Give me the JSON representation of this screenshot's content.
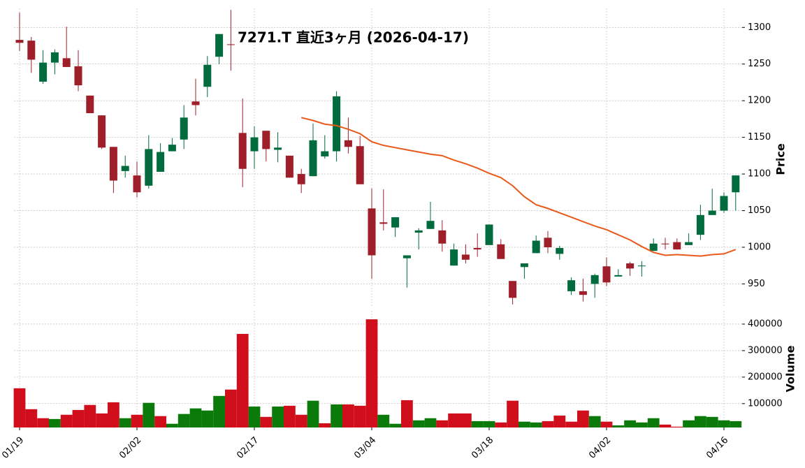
{
  "chart_data": [
    {
      "type": "candlestick",
      "title": "7271.T  直近3ヶ月  (2026-04-17)",
      "ylabel": "Price",
      "open": [
        1283,
        1282,
        1226,
        1252,
        1258,
        1247,
        1207,
        1180,
        1137,
        1104,
        1098,
        1084,
        1103,
        1131,
        1147,
        1199,
        1219,
        1260,
        1277,
        1156,
        1131,
        1159,
        1133,
        1125,
        1100,
        1097,
        1124,
        1131,
        1146,
        1138,
        1053,
        1034,
        1027,
        985,
        1020,
        1025,
        1023,
        975,
        990,
        999,
        1003,
        1004,
        954,
        973,
        992,
        1013,
        991,
        940,
        940,
        950,
        974,
        960,
        978,
        975,
        995,
        1005,
        1007,
        1003,
        1017,
        1044,
        1050,
        1075
      ],
      "high": [
        1320,
        1287,
        1269,
        1270,
        1301,
        1269,
        1207,
        1180,
        1137,
        1125,
        1117,
        1153,
        1142,
        1149,
        1194,
        1230,
        1261,
        1291,
        1324,
        1203,
        1165,
        1159,
        1157,
        1125,
        1107,
        1169,
        1153,
        1213,
        1177,
        1152,
        1080,
        1079,
        1041,
        989,
        1026,
        1062,
        1037,
        1005,
        1004,
        1019,
        1031,
        1011,
        954,
        978,
        1016,
        1022,
        1002,
        959,
        957,
        964,
        986,
        970,
        980,
        981,
        1012,
        1013,
        1012,
        1019,
        1058,
        1080,
        1075,
        1098
      ],
      "low": [
        1268,
        1238,
        1223,
        1236,
        1246,
        1213,
        1183,
        1134,
        1074,
        1095,
        1068,
        1080,
        1103,
        1131,
        1134,
        1180,
        1205,
        1250,
        1241,
        1082,
        1107,
        1117,
        1116,
        1095,
        1074,
        1097,
        1121,
        1117,
        1128,
        1086,
        957,
        1023,
        1014,
        945,
        997,
        1025,
        994,
        975,
        978,
        987,
        1003,
        984,
        922,
        957,
        992,
        992,
        983,
        935,
        926,
        931,
        947,
        960,
        961,
        960,
        995,
        997,
        997,
        1003,
        1010,
        1044,
        1047,
        1050
      ],
      "close": [
        1279,
        1256,
        1252,
        1266,
        1246,
        1221,
        1183,
        1136,
        1091,
        1111,
        1075,
        1134,
        1130,
        1140,
        1177,
        1194,
        1249,
        1291,
        1276,
        1107,
        1150,
        1134,
        1136,
        1095,
        1086,
        1146,
        1131,
        1206,
        1137,
        1086,
        989,
        1032,
        1041,
        989,
        1023,
        1036,
        1005,
        997,
        983,
        997,
        1031,
        984,
        931,
        978,
        1009,
        1000,
        999,
        955,
        935,
        962,
        952,
        962,
        971,
        975,
        1005,
        1004,
        997,
        1007,
        1044,
        1050,
        1070,
        1098
      ],
      "up_color": "#006b3c",
      "down_color": "#9e1f2a",
      "ma": {
        "color": "#e8591a",
        "values": [
          null,
          null,
          null,
          null,
          null,
          null,
          null,
          null,
          null,
          null,
          null,
          null,
          null,
          null,
          null,
          null,
          null,
          null,
          null,
          null,
          null,
          null,
          null,
          null,
          1177,
          1173,
          1168,
          1166,
          1161,
          1155,
          1144,
          1139,
          1136,
          1133,
          1130,
          1127,
          1125,
          1119,
          1114,
          1108,
          1101,
          1095,
          1084,
          1069,
          1058,
          1053,
          1047,
          1041,
          1035,
          1029,
          1024,
          1017,
          1010,
          1001,
          993,
          989,
          990,
          989,
          988,
          990,
          991,
          997
        ]
      },
      "ylim": [
        918,
        1326
      ],
      "yticks": [
        950,
        1000,
        1050,
        1100,
        1150,
        1200,
        1250,
        1300
      ],
      "grid": true
    },
    {
      "type": "bar",
      "ylabel": "Volume",
      "categories": [
        "01/19",
        null,
        null,
        null,
        null,
        null,
        null,
        null,
        null,
        null,
        "02/02",
        null,
        null,
        null,
        null,
        null,
        null,
        null,
        null,
        null,
        "02/17",
        null,
        null,
        null,
        null,
        null,
        null,
        null,
        null,
        null,
        "03/04",
        null,
        null,
        null,
        null,
        null,
        null,
        null,
        null,
        null,
        "03/18",
        null,
        null,
        null,
        null,
        null,
        null,
        null,
        null,
        null,
        "04/02",
        null,
        null,
        null,
        null,
        null,
        null,
        null,
        null,
        null,
        "04/16",
        null
      ],
      "values": [
        158000,
        79000,
        45000,
        42000,
        58000,
        76000,
        95000,
        63000,
        105000,
        45000,
        58000,
        103000,
        53000,
        24000,
        61000,
        82000,
        74000,
        129000,
        153000,
        363000,
        89000,
        50000,
        89000,
        92000,
        58000,
        111000,
        26000,
        97000,
        97000,
        92000,
        418000,
        58000,
        24000,
        113000,
        37000,
        45000,
        37000,
        63000,
        63000,
        34000,
        34000,
        29000,
        111000,
        32000,
        29000,
        34000,
        55000,
        32000,
        74000,
        53000,
        32000,
        18000,
        37000,
        29000,
        45000,
        21000,
        13000,
        37000,
        53000,
        50000,
        37000,
        34000
      ],
      "colors": [
        "#d10f1c",
        "#d10f1c",
        "#d10f1c",
        "#0a7a0a",
        "#d10f1c",
        "#d10f1c",
        "#d10f1c",
        "#d10f1c",
        "#d10f1c",
        "#0a7a0a",
        "#d10f1c",
        "#0a7a0a",
        "#d10f1c",
        "#0a7a0a",
        "#0a7a0a",
        "#0a7a0a",
        "#0a7a0a",
        "#0a7a0a",
        "#d10f1c",
        "#d10f1c",
        "#0a7a0a",
        "#d10f1c",
        "#0a7a0a",
        "#d10f1c",
        "#d10f1c",
        "#0a7a0a",
        "#d10f1c",
        "#0a7a0a",
        "#d10f1c",
        "#d10f1c",
        "#d10f1c",
        "#0a7a0a",
        "#0a7a0a",
        "#d10f1c",
        "#0a7a0a",
        "#0a7a0a",
        "#d10f1c",
        "#d10f1c",
        "#d10f1c",
        "#0a7a0a",
        "#0a7a0a",
        "#d10f1c",
        "#d10f1c",
        "#0a7a0a",
        "#0a7a0a",
        "#d10f1c",
        "#d10f1c",
        "#d10f1c",
        "#d10f1c",
        "#0a7a0a",
        "#d10f1c",
        "#0a7a0a",
        "#0a7a0a",
        "#0a7a0a",
        "#0a7a0a",
        "#d10f1c",
        "#d10f1c",
        "#0a7a0a",
        "#0a7a0a",
        "#0a7a0a",
        "#0a7a0a",
        "#0a7a0a"
      ],
      "ylim": [
        10000,
        450000
      ],
      "yticks": [
        100000,
        200000,
        300000,
        400000
      ],
      "grid": true
    }
  ]
}
